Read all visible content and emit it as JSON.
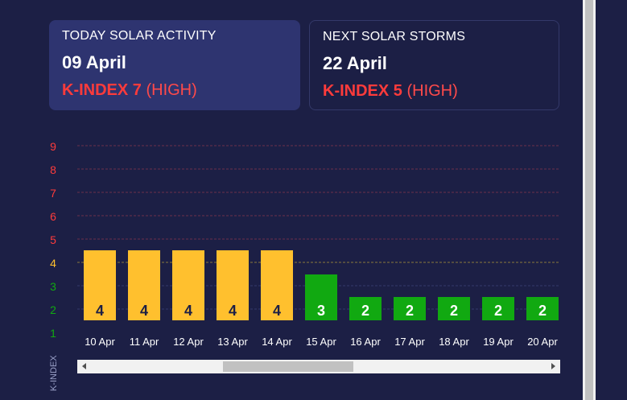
{
  "today": {
    "label": "TODAY SOLAR ACTIVITY",
    "date": "09 April",
    "kindex_text": "K-INDEX 7",
    "level": "(HIGH)"
  },
  "next": {
    "label": "NEXT SOLAR STORMS",
    "date": "22 April",
    "kindex_text": "K-INDEX 5",
    "level": "(HIGH)"
  },
  "chart_data": {
    "type": "bar",
    "ylabel": "K-INDEX",
    "ylim": [
      1,
      9
    ],
    "yticks": [
      1,
      2,
      3,
      4,
      5,
      6,
      7,
      8,
      9
    ],
    "categories": [
      "10 Apr",
      "11 Apr",
      "12 Apr",
      "13 Apr",
      "14 Apr",
      "15 Apr",
      "16 Apr",
      "17 Apr",
      "18 Apr",
      "19 Apr",
      "20 Apr"
    ],
    "values": [
      4,
      4,
      4,
      4,
      4,
      3,
      2,
      2,
      2,
      2,
      2
    ],
    "colors": {
      "high": "#ff3b3b",
      "medium": "#ffc02e",
      "low": "#11a911",
      "grid": "#6b2f4a"
    }
  }
}
